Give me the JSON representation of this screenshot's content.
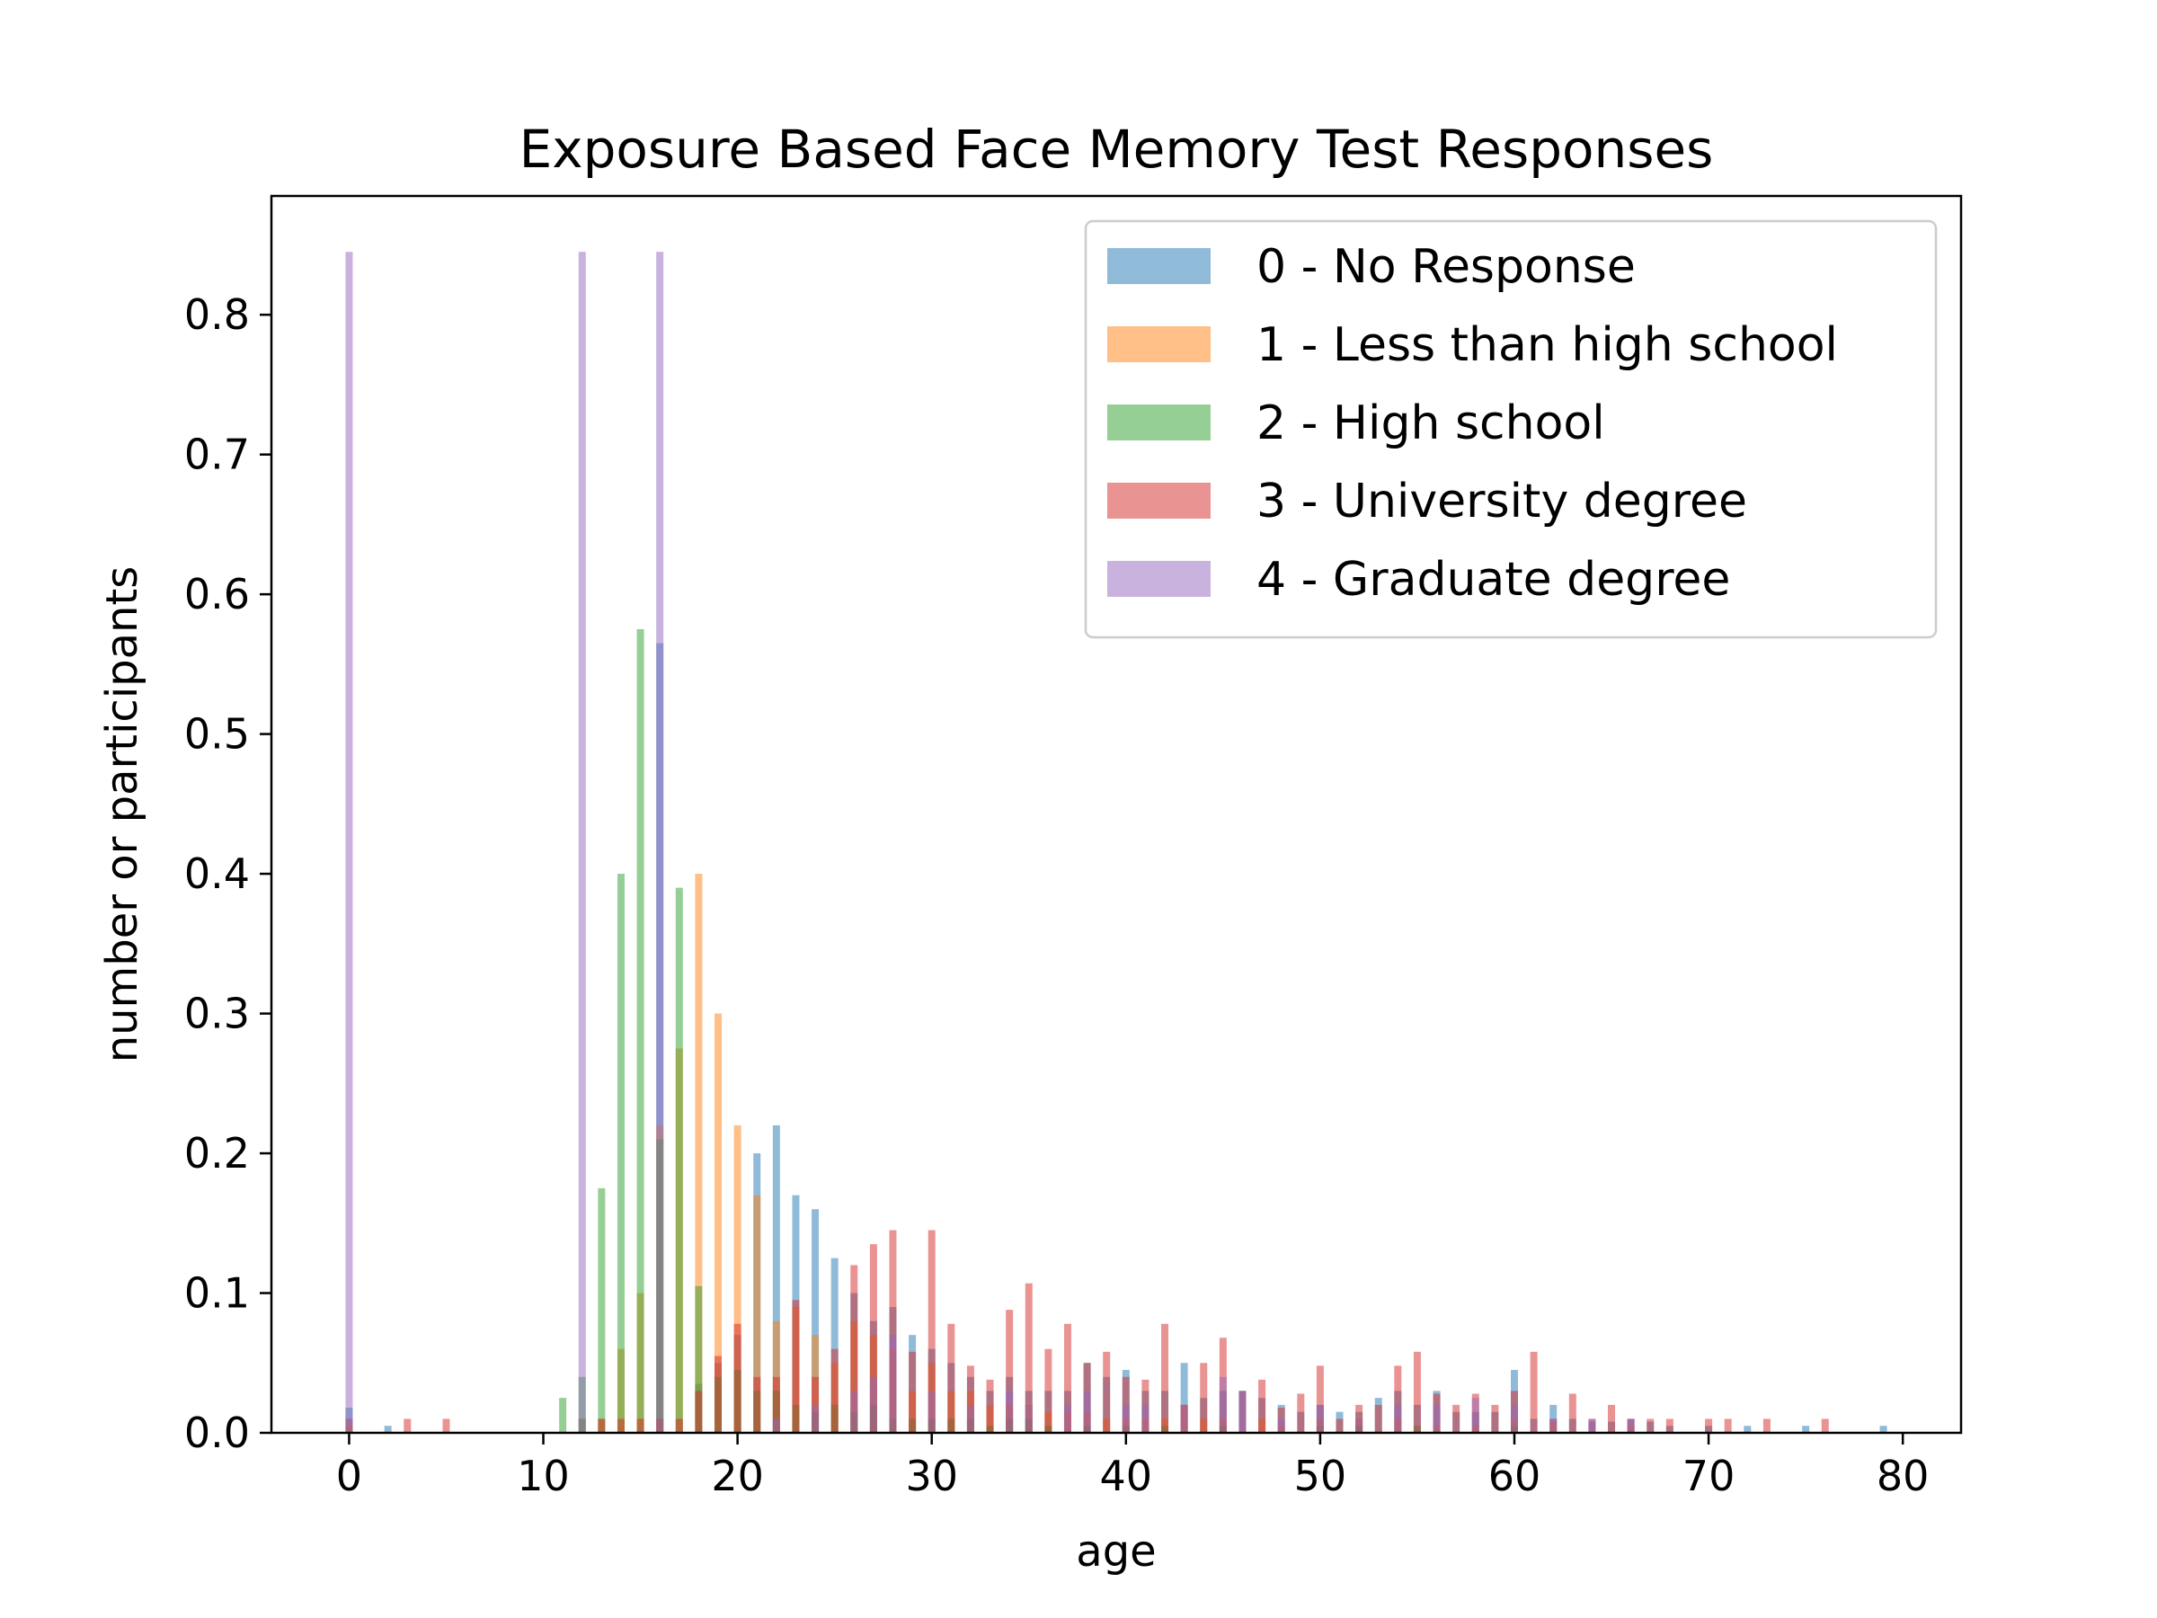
{
  "chart_data": {
    "type": "bar",
    "title": "Exposure Based Face Memory Test Responses",
    "xlabel": "age",
    "ylabel": "number or participants",
    "xlim": [
      -4,
      83
    ],
    "ylim": [
      0,
      0.885
    ],
    "x_ticks": [
      0,
      10,
      20,
      30,
      40,
      50,
      60,
      70,
      80
    ],
    "y_ticks": [
      0.0,
      0.1,
      0.2,
      0.3,
      0.4,
      0.5,
      0.6,
      0.7,
      0.8
    ],
    "grid": false,
    "legend_position": "top-right",
    "bar_alpha": 0.5,
    "series": [
      {
        "name": "0 - No Response",
        "color": "#1f77b4",
        "points": [
          [
            0,
            0.018
          ],
          [
            2,
            0.005
          ],
          [
            12,
            0.01
          ],
          [
            16,
            0.565
          ],
          [
            18,
            0.035
          ],
          [
            19,
            0.05
          ],
          [
            20,
            0.07
          ],
          [
            21,
            0.2
          ],
          [
            22,
            0.22
          ],
          [
            23,
            0.17
          ],
          [
            24,
            0.16
          ],
          [
            25,
            0.125
          ],
          [
            26,
            0.1
          ],
          [
            27,
            0.08
          ],
          [
            28,
            0.09
          ],
          [
            29,
            0.07
          ],
          [
            30,
            0.06
          ],
          [
            31,
            0.05
          ],
          [
            32,
            0.04
          ],
          [
            33,
            0.03
          ],
          [
            34,
            0.04
          ],
          [
            35,
            0.03
          ],
          [
            36,
            0.03
          ],
          [
            37,
            0.03
          ],
          [
            38,
            0.05
          ],
          [
            39,
            0.04
          ],
          [
            40,
            0.045
          ],
          [
            41,
            0.03
          ],
          [
            42,
            0.03
          ],
          [
            43,
            0.05
          ],
          [
            44,
            0.025
          ],
          [
            45,
            0.03
          ],
          [
            46,
            0.03
          ],
          [
            47,
            0.025
          ],
          [
            48,
            0.02
          ],
          [
            49,
            0.015
          ],
          [
            50,
            0.02
          ],
          [
            51,
            0.015
          ],
          [
            52,
            0.015
          ],
          [
            53,
            0.025
          ],
          [
            54,
            0.03
          ],
          [
            55,
            0.02
          ],
          [
            56,
            0.03
          ],
          [
            57,
            0.015
          ],
          [
            58,
            0.015
          ],
          [
            59,
            0.015
          ],
          [
            60,
            0.045
          ],
          [
            61,
            0.01
          ],
          [
            62,
            0.02
          ],
          [
            63,
            0.01
          ],
          [
            64,
            0.008
          ],
          [
            65,
            0.008
          ],
          [
            66,
            0.01
          ],
          [
            67,
            0.008
          ],
          [
            68,
            0.005
          ],
          [
            70,
            0.005
          ],
          [
            72,
            0.005
          ],
          [
            75,
            0.005
          ],
          [
            79,
            0.005
          ]
        ]
      },
      {
        "name": "1 - Less than high school",
        "color": "#ff7f0e",
        "points": [
          [
            0,
            0.005
          ],
          [
            12,
            0.01
          ],
          [
            13,
            0.01
          ],
          [
            14,
            0.06
          ],
          [
            15,
            0.1
          ],
          [
            16,
            0.22
          ],
          [
            17,
            0.275
          ],
          [
            18,
            0.4
          ],
          [
            19,
            0.3
          ],
          [
            20,
            0.22
          ],
          [
            21,
            0.17
          ],
          [
            22,
            0.08
          ],
          [
            23,
            0.09
          ],
          [
            24,
            0.07
          ],
          [
            25,
            0.05
          ],
          [
            26,
            0.08
          ],
          [
            27,
            0.07
          ],
          [
            28,
            0.06
          ],
          [
            29,
            0.03
          ],
          [
            30,
            0.05
          ],
          [
            31,
            0.03
          ],
          [
            32,
            0.03
          ],
          [
            33,
            0.02
          ],
          [
            34,
            0.02
          ],
          [
            35,
            0.02
          ],
          [
            36,
            0.015
          ],
          [
            37,
            0.015
          ],
          [
            38,
            0.015
          ],
          [
            39,
            0.01
          ],
          [
            40,
            0.01
          ],
          [
            41,
            0.01
          ],
          [
            42,
            0.01
          ],
          [
            43,
            0.02
          ],
          [
            44,
            0.01
          ],
          [
            45,
            0.01
          ],
          [
            47,
            0.01
          ],
          [
            48,
            0.005
          ],
          [
            50,
            0.01
          ],
          [
            52,
            0.01
          ],
          [
            54,
            0.01
          ],
          [
            56,
            0.005
          ],
          [
            58,
            0.005
          ],
          [
            60,
            0.01
          ],
          [
            62,
            0.008
          ],
          [
            66,
            0.005
          ]
        ]
      },
      {
        "name": "2 - High school",
        "color": "#2ca02c",
        "points": [
          [
            11,
            0.025
          ],
          [
            12,
            0.04
          ],
          [
            13,
            0.175
          ],
          [
            14,
            0.4
          ],
          [
            15,
            0.575
          ],
          [
            16,
            0.21
          ],
          [
            17,
            0.39
          ],
          [
            18,
            0.105
          ],
          [
            19,
            0.04
          ],
          [
            20,
            0.045
          ],
          [
            21,
            0.03
          ],
          [
            22,
            0.03
          ],
          [
            23,
            0.02
          ],
          [
            24,
            0.015
          ],
          [
            25,
            0.02
          ],
          [
            26,
            0.015
          ],
          [
            27,
            0.02
          ],
          [
            28,
            0.01
          ],
          [
            29,
            0.01
          ],
          [
            30,
            0.01
          ],
          [
            31,
            0.01
          ],
          [
            32,
            0.01
          ],
          [
            33,
            0.005
          ],
          [
            34,
            0.01
          ],
          [
            35,
            0.01
          ],
          [
            36,
            0.005
          ],
          [
            38,
            0.005
          ],
          [
            40,
            0.005
          ],
          [
            42,
            0.005
          ],
          [
            45,
            0.005
          ],
          [
            50,
            0.005
          ],
          [
            52,
            0.005
          ],
          [
            55,
            0.005
          ],
          [
            60,
            0.005
          ]
        ]
      },
      {
        "name": "3 - University degree",
        "color": "#d62728",
        "points": [
          [
            0,
            0.01
          ],
          [
            3,
            0.01
          ],
          [
            5,
            0.01
          ],
          [
            13,
            0.01
          ],
          [
            14,
            0.01
          ],
          [
            15,
            0.01
          ],
          [
            16,
            0.01
          ],
          [
            17,
            0.01
          ],
          [
            18,
            0.03
          ],
          [
            19,
            0.055
          ],
          [
            20,
            0.078
          ],
          [
            21,
            0.04
          ],
          [
            22,
            0.04
          ],
          [
            23,
            0.095
          ],
          [
            24,
            0.04
          ],
          [
            25,
            0.06
          ],
          [
            26,
            0.12
          ],
          [
            27,
            0.135
          ],
          [
            28,
            0.145
          ],
          [
            29,
            0.058
          ],
          [
            30,
            0.145
          ],
          [
            31,
            0.078
          ],
          [
            32,
            0.048
          ],
          [
            33,
            0.038
          ],
          [
            34,
            0.088
          ],
          [
            35,
            0.107
          ],
          [
            36,
            0.06
          ],
          [
            37,
            0.078
          ],
          [
            38,
            0.05
          ],
          [
            39,
            0.058
          ],
          [
            40,
            0.04
          ],
          [
            41,
            0.038
          ],
          [
            42,
            0.078
          ],
          [
            43,
            0.02
          ],
          [
            44,
            0.05
          ],
          [
            45,
            0.068
          ],
          [
            46,
            0.03
          ],
          [
            47,
            0.038
          ],
          [
            48,
            0.018
          ],
          [
            49,
            0.028
          ],
          [
            50,
            0.048
          ],
          [
            51,
            0.01
          ],
          [
            52,
            0.02
          ],
          [
            53,
            0.02
          ],
          [
            54,
            0.048
          ],
          [
            55,
            0.058
          ],
          [
            56,
            0.028
          ],
          [
            57,
            0.02
          ],
          [
            58,
            0.028
          ],
          [
            59,
            0.02
          ],
          [
            60,
            0.03
          ],
          [
            61,
            0.058
          ],
          [
            62,
            0.01
          ],
          [
            63,
            0.028
          ],
          [
            64,
            0.01
          ],
          [
            65,
            0.02
          ],
          [
            66,
            0.01
          ],
          [
            67,
            0.01
          ],
          [
            68,
            0.01
          ],
          [
            70,
            0.01
          ],
          [
            71,
            0.01
          ],
          [
            73,
            0.01
          ],
          [
            76,
            0.01
          ]
        ]
      },
      {
        "name": "4 - Graduate degree",
        "color": "#9467bd",
        "points": [
          [
            0,
            0.845
          ],
          [
            12,
            0.845
          ],
          [
            16,
            0.845
          ],
          [
            22,
            0.01
          ],
          [
            24,
            0.02
          ],
          [
            26,
            0.03
          ],
          [
            27,
            0.04
          ],
          [
            28,
            0.07
          ],
          [
            30,
            0.03
          ],
          [
            32,
            0.02
          ],
          [
            34,
            0.03
          ],
          [
            35,
            0.02
          ],
          [
            37,
            0.02
          ],
          [
            38,
            0.03
          ],
          [
            40,
            0.02
          ],
          [
            41,
            0.02
          ],
          [
            43,
            0.02
          ],
          [
            45,
            0.04
          ],
          [
            46,
            0.03
          ],
          [
            48,
            0.01
          ],
          [
            50,
            0.02
          ],
          [
            52,
            0.01
          ],
          [
            54,
            0.02
          ],
          [
            56,
            0.02
          ],
          [
            58,
            0.025
          ],
          [
            60,
            0.02
          ],
          [
            62,
            0.01
          ],
          [
            64,
            0.01
          ],
          [
            66,
            0.01
          ]
        ]
      }
    ]
  }
}
